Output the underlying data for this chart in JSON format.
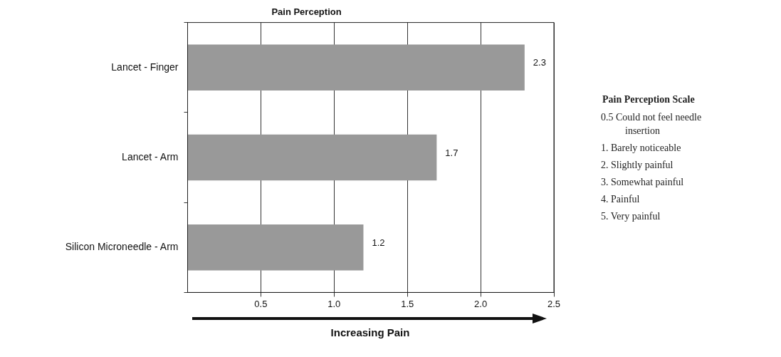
{
  "chart_data": {
    "type": "bar",
    "orientation": "horizontal",
    "title": "Pain Perception",
    "xlabel": "Increasing Pain",
    "categories": [
      "Lancet - Finger",
      "Lancet - Arm",
      "Silicon Microneedle - Arm"
    ],
    "values": [
      2.3,
      1.7,
      1.2
    ],
    "color": "#999999",
    "data_labels": true,
    "xlim": [
      0,
      2.5
    ],
    "xticks": [
      0.5,
      {
        "value": 1,
        "label": "1.0"
      },
      1.5,
      {
        "value": 2,
        "label": "2.0"
      },
      2.5
    ],
    "grid": "x",
    "legend": false,
    "annotations": [
      "Pain Perception Scale",
      "0.5 Could not feel needle insertion",
      "1. Barely noticeable",
      "2. Slightly painful",
      "3. Somewhat painful",
      "4. Painful",
      "5. Very painful"
    ]
  }
}
